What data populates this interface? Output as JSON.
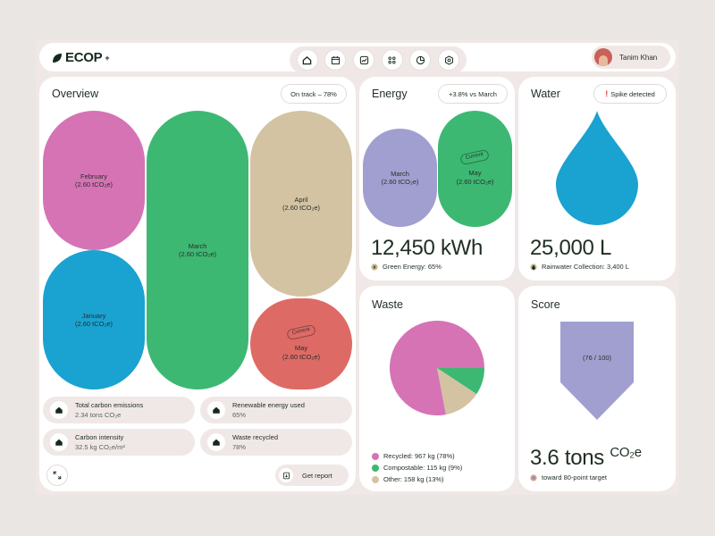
{
  "app": {
    "logo_text": "ECOP",
    "logo_sup": "+"
  },
  "nav": {
    "icons": [
      "home-icon",
      "calendar-icon",
      "chart-line-icon",
      "grid-icon",
      "pie-chart-icon",
      "settings-icon"
    ]
  },
  "user": {
    "name": "Tanim Khan"
  },
  "overview": {
    "title": "Overview",
    "status": "On track – 78%",
    "months": [
      {
        "name": "February",
        "value": "(2.60 tCO₂e)",
        "color": "#d673b5"
      },
      {
        "name": "January",
        "value": "(2.60 tCO₂e)",
        "color": "#1aa2d0"
      },
      {
        "name": "March",
        "value": "(2.60 tCO₂e)",
        "color": "#3db873"
      },
      {
        "name": "April",
        "value": "(2.60 tCO₂e)",
        "color": "#d3c3a3"
      },
      {
        "name": "May",
        "value": "(2.60 tCO₂e)",
        "color": "#de6a66",
        "tag": "Current"
      }
    ],
    "stats": [
      {
        "label": "Total carbon emissions",
        "value": "2.34 tons CO₂e"
      },
      {
        "label": "Renewable energy used",
        "value": "65%"
      },
      {
        "label": "Carbon intensity",
        "value": "32.5 kg CO₂e/m²"
      },
      {
        "label": "Waste recycled",
        "value": "78%"
      }
    ],
    "report_label": "Get report"
  },
  "energy": {
    "title": "Energy",
    "change": "+3.8% vs March",
    "march": {
      "name": "March",
      "value": "(2.60 tCO₂e)",
      "color": "#a19fd0"
    },
    "may": {
      "name": "May",
      "value": "(2.60 tCO₂e)",
      "color": "#3db873",
      "tag": "Current"
    },
    "total": "12,450 kWh",
    "green": "Green Energy: 65%"
  },
  "water": {
    "title": "Water",
    "alert": "Spike detected",
    "alert_mark": "!",
    "drop_color": "#1aa2d0",
    "total": "25,000 L",
    "rain": "Rainwater Collection: 3,400 L"
  },
  "waste": {
    "title": "Waste",
    "chart_data": {
      "type": "pie",
      "categories": [
        "Recycled",
        "Compostable",
        "Other"
      ],
      "values": [
        967,
        115,
        158
      ],
      "percent": [
        78,
        9,
        13
      ],
      "colors": [
        "#d673b5",
        "#3db873",
        "#d3c3a3"
      ]
    },
    "legend": [
      {
        "text": "Recycled: 967 kg (78%)",
        "color": "#d673b5"
      },
      {
        "text": "Compostable: 115 kg (9%)",
        "color": "#3db873"
      },
      {
        "text": "Other: 158 kg (13%)",
        "color": "#d3c3a3"
      }
    ]
  },
  "score": {
    "title": "Score",
    "label": "(76 / 100)",
    "score": 76,
    "max": 100,
    "color": "#a19fd0",
    "total": "3.6 tons",
    "unit": "CO₂e",
    "target": "toward 80-point target"
  }
}
